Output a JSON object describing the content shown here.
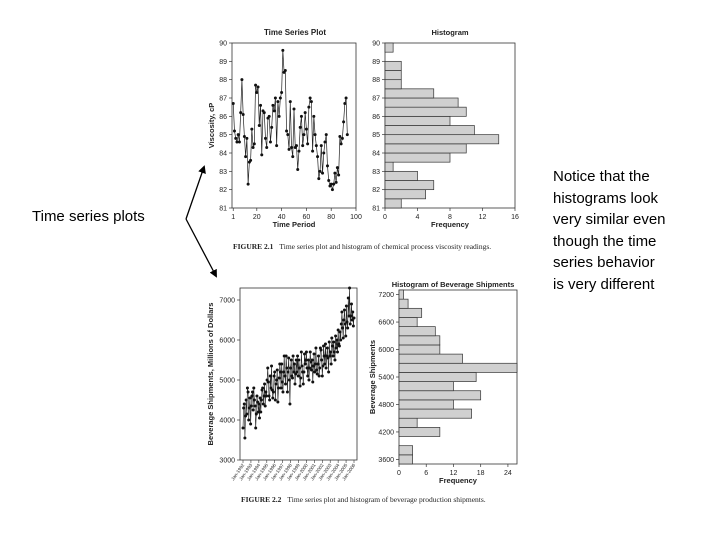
{
  "annotations": {
    "left": "Time series plots",
    "right": "Notice that the\nhistograms look\nvery similar even\nthough the time\nseries behavior\nis very different"
  },
  "captions": {
    "fig1": {
      "label": "FIGURE 2.1",
      "text": "Time series plot and histogram of chemical process viscosity readings."
    },
    "fig2": {
      "label": "FIGURE 2.2",
      "text": "Time series plot and histogram of beverage production shipments."
    }
  },
  "chart_data": [
    {
      "id": "viscosity_ts",
      "type": "line",
      "title": "Time Series Plot",
      "xlabel": "Time Period",
      "ylabel": "Viscosity, cP",
      "xlim": [
        0,
        100
      ],
      "ylim": [
        81,
        90
      ],
      "xticks": [
        1,
        20,
        40,
        60,
        80,
        100
      ],
      "yticks": [
        81,
        82,
        83,
        84,
        85,
        86,
        87,
        88,
        89,
        90
      ],
      "values": [
        86.7,
        85.2,
        84.8,
        84.6,
        85.0,
        84.6,
        86.2,
        88.0,
        86.1,
        84.9,
        83.8,
        84.8,
        82.3,
        83.5,
        83.6,
        85.3,
        84.3,
        84.5,
        87.7,
        87.3,
        87.6,
        85.5,
        86.6,
        83.9,
        86.3,
        86.2,
        84.8,
        84.3,
        85.9,
        86.0,
        84.6,
        85.4,
        86.6,
        86.3,
        87.0,
        84.4,
        86.8,
        86.0,
        87.0,
        87.3,
        89.6,
        88.4,
        88.5,
        85.2,
        85.0,
        84.2,
        86.8,
        84.3,
        83.8,
        86.4,
        84.3,
        84.4,
        83.1,
        84.1,
        85.4,
        86.0,
        84.4,
        85.0,
        86.2,
        85.3,
        84.5,
        86.5,
        87.0,
        86.8,
        84.1,
        86.0,
        85.0,
        84.4,
        83.8,
        82.6,
        83.0,
        84.4,
        82.9,
        84.0,
        84.6,
        85.0,
        83.3,
        82.5,
        82.2,
        82.3,
        82.0,
        82.3,
        82.9,
        82.4,
        83.2,
        82.8,
        84.9,
        84.5,
        84.8,
        85.7,
        86.7,
        87.0,
        85.0
      ],
      "x": [
        1,
        2,
        3,
        4,
        5,
        6,
        7,
        8,
        9,
        10,
        11,
        12,
        13,
        14,
        15,
        16,
        17,
        18,
        19,
        20,
        21,
        22,
        23,
        24,
        25,
        26,
        27,
        28,
        29,
        30,
        31,
        32,
        33,
        34,
        35,
        36,
        37,
        38,
        39,
        40,
        41,
        42,
        43,
        44,
        45,
        46,
        47,
        48,
        49,
        50,
        51,
        52,
        53,
        54,
        55,
        56,
        57,
        58,
        59,
        60,
        61,
        62,
        63,
        64,
        65,
        66,
        67,
        68,
        69,
        70,
        71,
        72,
        73,
        74,
        75,
        76,
        77,
        78,
        79,
        80,
        81,
        82,
        83,
        84,
        85,
        86,
        87,
        88,
        89,
        90,
        91,
        92,
        93
      ]
    },
    {
      "id": "viscosity_hist",
      "type": "bar",
      "orientation": "horizontal",
      "title": "Histogram",
      "xlabel": "Frequency",
      "ylabel": "",
      "xlim": [
        0,
        16
      ],
      "ylim": [
        81,
        90
      ],
      "xticks": [
        0,
        4,
        8,
        12,
        16
      ],
      "yticks": [
        81,
        82,
        83,
        84,
        85,
        86,
        87,
        88,
        89,
        90
      ],
      "bin_width": 0.5,
      "bins": [
        81.0,
        81.5,
        82.0,
        82.5,
        83.0,
        83.5,
        84.0,
        84.5,
        85.0,
        85.5,
        86.0,
        86.5,
        87.0,
        87.5,
        88.0,
        88.5,
        89.0,
        89.5
      ],
      "values": [
        2,
        5,
        6,
        4,
        1,
        8,
        10,
        14,
        11,
        8,
        10,
        9,
        6,
        2,
        2,
        2,
        0,
        1
      ]
    },
    {
      "id": "beverage_ts",
      "type": "line",
      "title": "",
      "xlabel": "",
      "ylabel": "Beverage Shipments, Millions of Dollars",
      "ylim": [
        3000,
        7300
      ],
      "yticks": [
        3000,
        4000,
        5000,
        6000,
        7000
      ],
      "xtick_labels": [
        "Jan-1992",
        "Jan-1993",
        "Jan-1994",
        "Jan-1995",
        "Jan-1996",
        "Jan-1997",
        "Jan-1998",
        "Jan-1999",
        "Jan-2000",
        "Jan-2001",
        "Jan-2002",
        "Jan-2003",
        "Jan-2004",
        "Jan-2005",
        "Jan-2006"
      ],
      "values": [
        3800,
        4300,
        4400,
        3550,
        4100,
        4500,
        4150,
        4800,
        4700,
        4000,
        4300,
        4550,
        3900,
        4350,
        4600,
        4700,
        4250,
        4800,
        4500,
        4350,
        3800,
        4150,
        4600,
        4450,
        4200,
        4400,
        4050,
        4550,
        4200,
        4500,
        4750,
        4800,
        4400,
        4600,
        4900,
        4350,
        4700,
        4600,
        5000,
        5300,
        4950,
        4600,
        4500,
        5100,
        4800,
        5350,
        4750,
        4550,
        4700,
        5100,
        5200,
        4500,
        4900,
        5000,
        5250,
        4450,
        4800,
        5050,
        5400,
        5200,
        4800,
        5400,
        4950,
        4700,
        5200,
        5600,
        5100,
        4900,
        5600,
        5300,
        4700,
        5200,
        5550,
        5000,
        4400,
        5300,
        5500,
        5100,
        5050,
        5600,
        5200,
        5400,
        4900,
        5150,
        5500,
        5200,
        5600,
        5100,
        5500,
        5300,
        4850,
        5050,
        5700,
        5350,
        5200,
        4900,
        5200,
        5650,
        5400,
        5500,
        5700,
        5300,
        5100,
        5500,
        5000,
        5300,
        5700,
        5450,
        5250,
        5500,
        4950,
        5350,
        5650,
        5200,
        5400,
        5800,
        5250,
        5150,
        5400,
        5600,
        5100,
        5300,
        5800,
        5750,
        5500,
        5100,
        5350,
        5850,
        5600,
        5400,
        5900,
        5300,
        5600,
        5800,
        5550,
        5200,
        5950,
        5600,
        5700,
        5400,
        6050,
        5850,
        5600,
        5950,
        5700,
        5500,
        6100,
        5800,
        6000,
        5700,
        6250,
        5900,
        5850,
        6200,
        6000,
        6400,
        6700,
        6300,
        6050,
        6500,
        6750,
        6400,
        6100,
        6850,
        6450,
        6300,
        7050,
        6600,
        7300,
        6400,
        6600,
        6900,
        6500,
        6700,
        6350,
        6550
      ]
    },
    {
      "id": "beverage_hist",
      "type": "bar",
      "orientation": "horizontal",
      "title": "Histogram of Beverage Shipments",
      "xlabel": "Frequency",
      "ylabel": "Beverage Shipments",
      "xlim": [
        0,
        26
      ],
      "ylim": [
        3500,
        7300
      ],
      "xticks": [
        0,
        6,
        12,
        18,
        24
      ],
      "yticks": [
        3600,
        4200,
        4800,
        5400,
        6000,
        6600,
        7200
      ],
      "bin_width": 200,
      "bins": [
        3500,
        3700,
        3900,
        4100,
        4300,
        4500,
        4700,
        4900,
        5100,
        5300,
        5500,
        5700,
        5900,
        6100,
        6300,
        6500,
        6700,
        6900,
        7100
      ],
      "values": [
        3,
        3,
        0,
        9,
        4,
        16,
        12,
        18,
        12,
        17,
        26,
        14,
        9,
        9,
        8,
        4,
        5,
        2,
        1
      ]
    }
  ]
}
